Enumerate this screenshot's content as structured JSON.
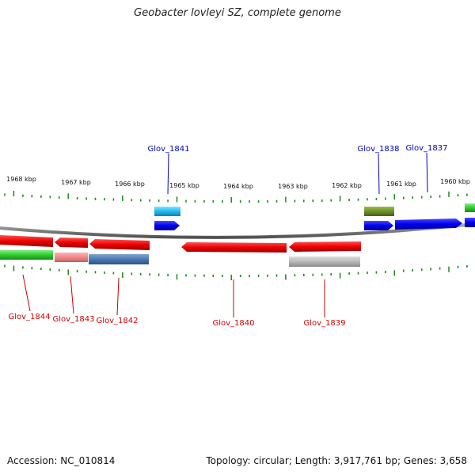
{
  "title": "Geobacter lovleyi SZ, complete genome",
  "accession_label": "Accession: NC_010814",
  "summary_label": "Topology: circular; Length: 3,917,761 bp; Genes: 3,658",
  "scale": {
    "labels": [
      "1968 kbp",
      "1967 kbp",
      "1966 kbp",
      "1965 kbp",
      "1964 kbp",
      "1963 kbp",
      "1962 kbp",
      "1961 kbp",
      "1960 kbp"
    ]
  },
  "colors": {
    "forward_label": "#0000bb",
    "reverse_label": "#cc0000",
    "tick": "#1a8a1a",
    "backbone": "#808080"
  },
  "genes": [
    {
      "name": "Glov_1841",
      "strand": "+",
      "color": "#0000ee"
    },
    {
      "name": "Glov_1838",
      "strand": "+",
      "color": "#0000ee"
    },
    {
      "name": "Glov_1837",
      "strand": "+",
      "color": "#0000ee"
    },
    {
      "name": "Glov_1844",
      "strand": "-",
      "color": "#ee0000"
    },
    {
      "name": "Glov_1843",
      "strand": "-",
      "color": "#ee0000"
    },
    {
      "name": "Glov_1842",
      "strand": "-",
      "color": "#ee0000"
    },
    {
      "name": "Glov_1840",
      "strand": "-",
      "color": "#ee0000"
    },
    {
      "name": "Glov_1839",
      "strand": "-",
      "color": "#ee0000"
    }
  ]
}
